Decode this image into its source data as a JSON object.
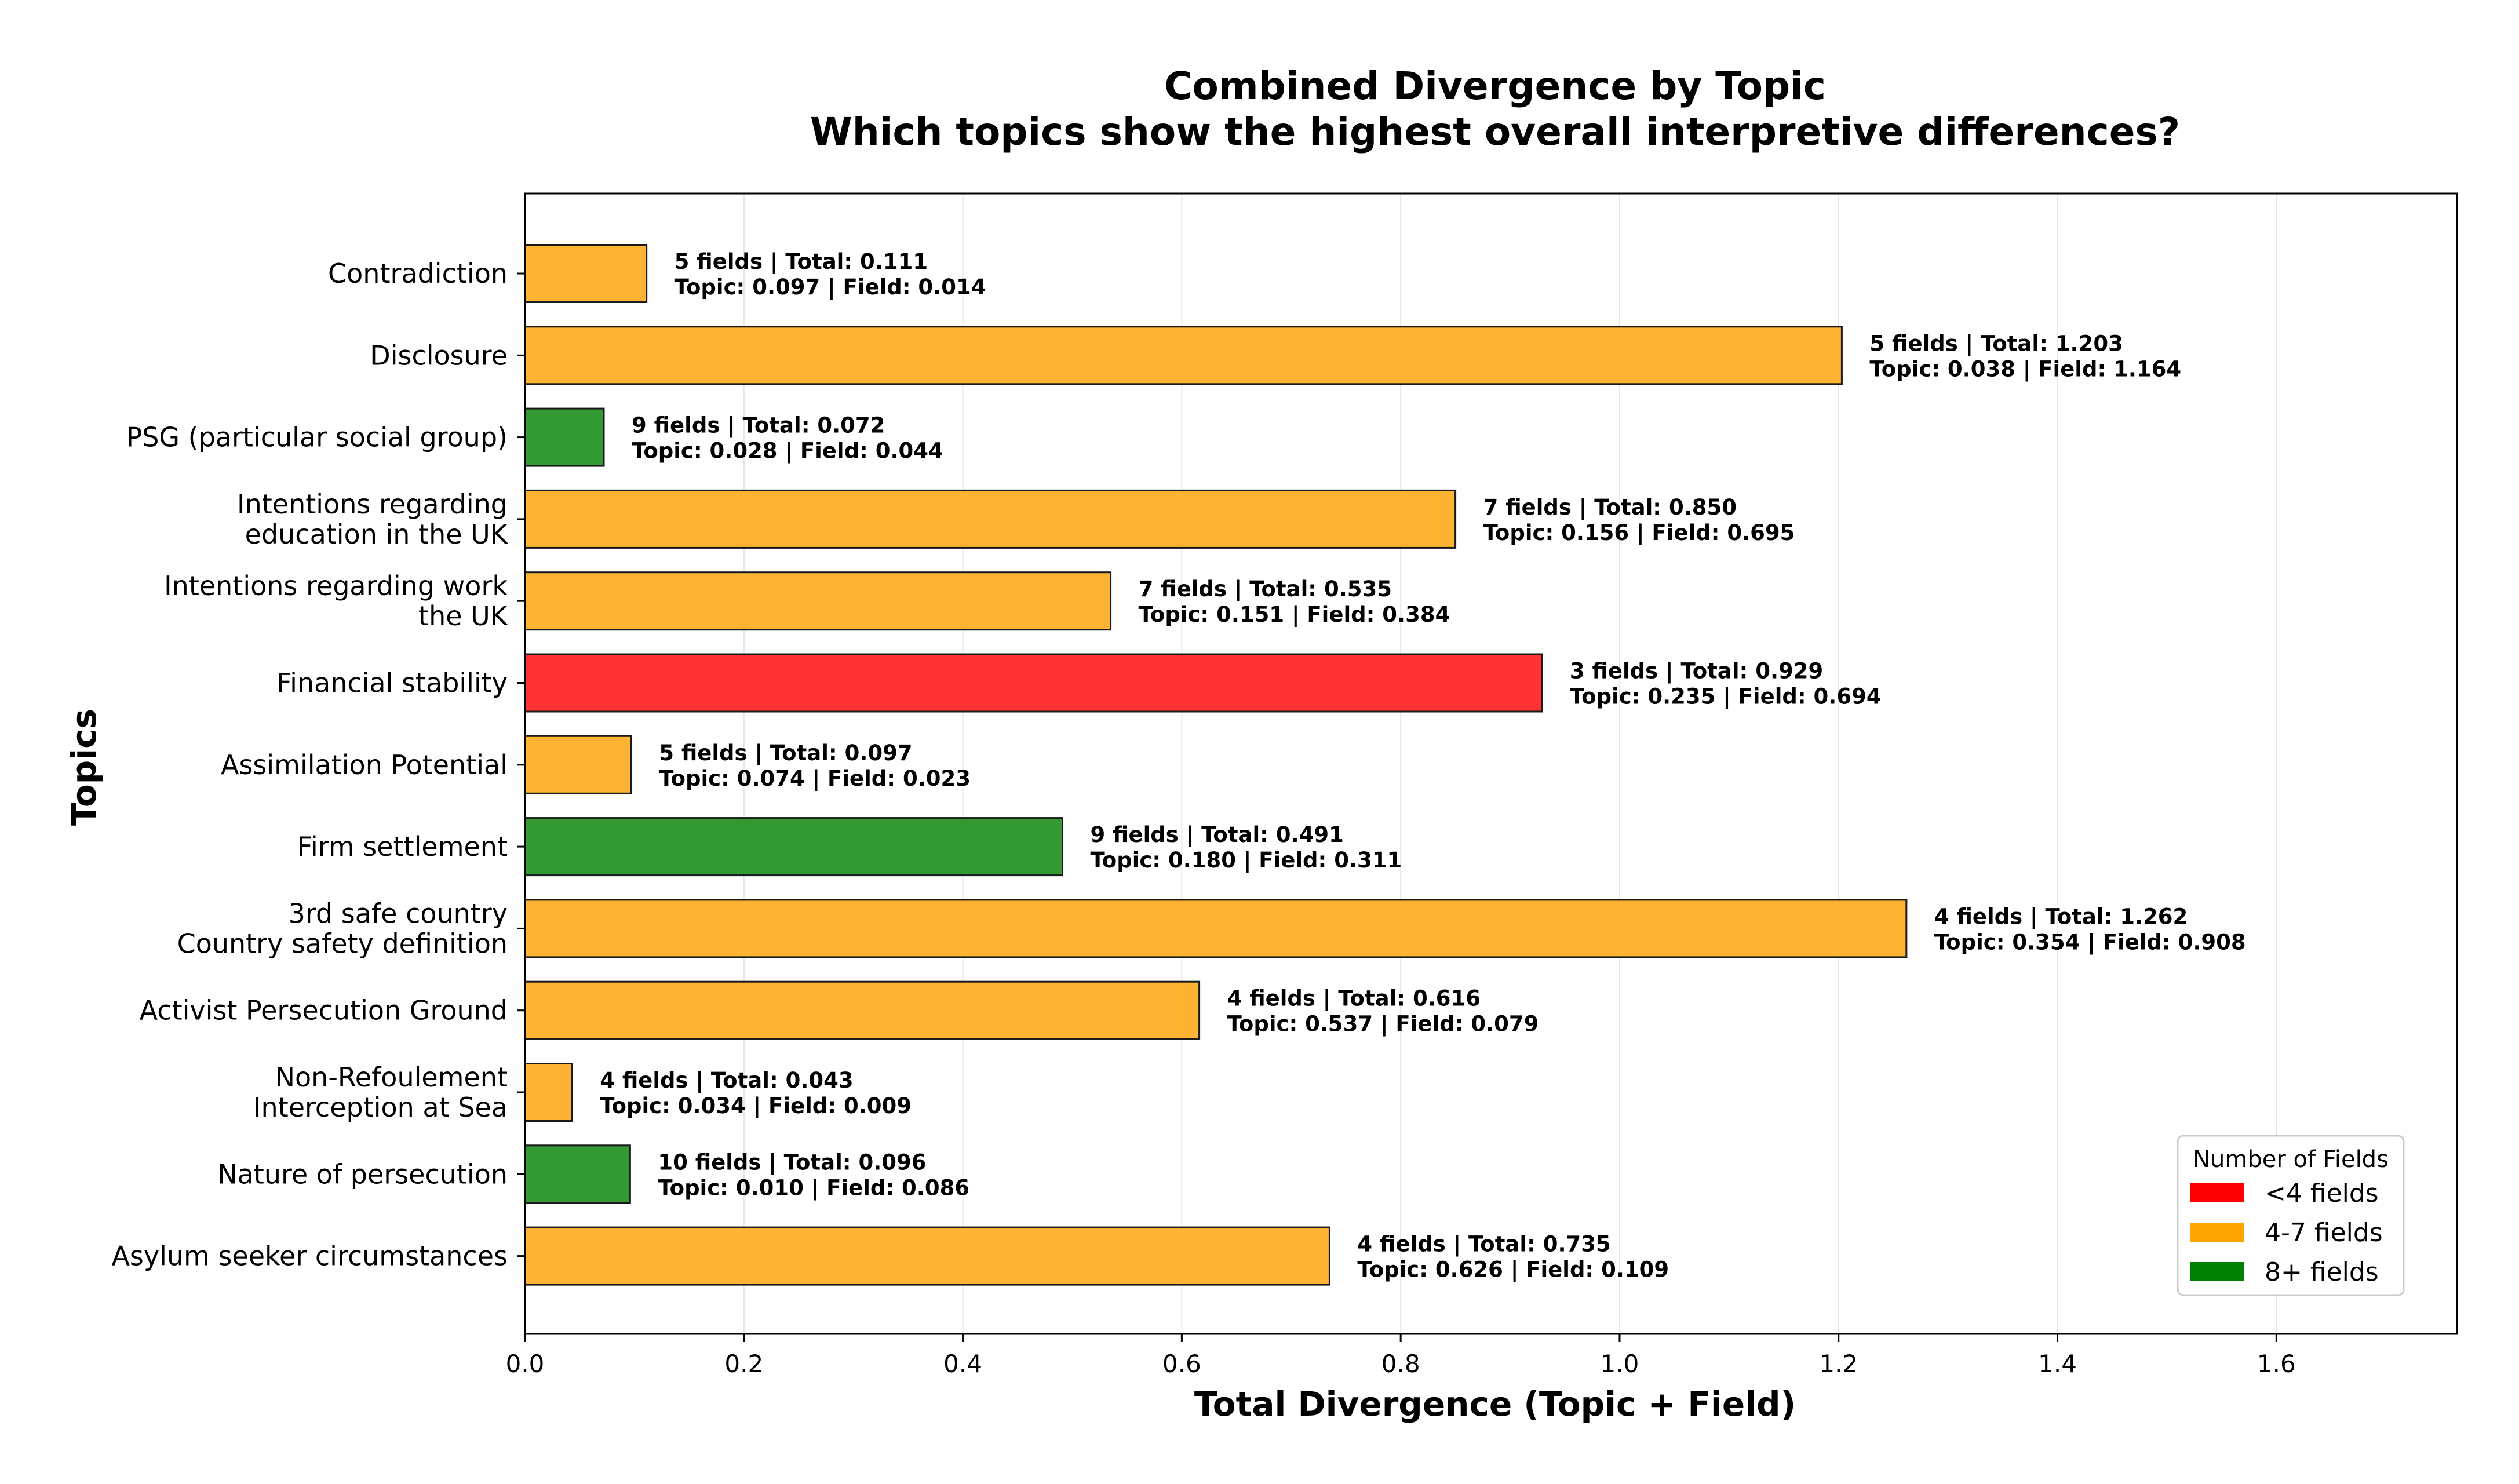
{
  "chart_data": {
    "type": "bar",
    "orientation": "horizontal",
    "title_lines": [
      "Combined Divergence by Topic",
      "Which topics show the highest overall interpretive differences?"
    ],
    "xlabel": "Total Divergence (Topic + Field)",
    "ylabel": "Topics",
    "xlim": [
      0,
      1.765
    ],
    "xticks": [
      "0.0",
      "0.2",
      "0.4",
      "0.6",
      "0.8",
      "1.0",
      "1.2",
      "1.4",
      "1.6"
    ],
    "xtick_values": [
      0.0,
      0.2,
      0.4,
      0.6,
      0.8,
      1.0,
      1.2,
      1.4,
      1.6
    ],
    "grid": "x",
    "legend": {
      "title": "Number of Fields",
      "placement": "lower-right",
      "entries": [
        {
          "label": "<4 fields",
          "color": "#ff0000"
        },
        {
          "label": "4-7 fields",
          "color": "#ffa500"
        },
        {
          "label": "8+ fields",
          "color": "#008000"
        }
      ]
    },
    "bar_colors": {
      "<4 fields": "#ff3333",
      "4-7 fields": "#ffb333",
      "8+ fields": "#339933"
    },
    "categories": [
      {
        "lines": [
          "Contradiction"
        ],
        "total": 0.111,
        "topic": 0.097,
        "field": 0.014,
        "fields": 5,
        "group": "4-7 fields",
        "label_line1": "5 fields | Total: 0.111",
        "label_line2": "Topic: 0.097 | Field: 0.014"
      },
      {
        "lines": [
          "Disclosure"
        ],
        "total": 1.203,
        "topic": 0.038,
        "field": 1.164,
        "fields": 5,
        "group": "4-7 fields",
        "label_line1": "5 fields | Total: 1.203",
        "label_line2": "Topic: 0.038 | Field: 1.164"
      },
      {
        "lines": [
          "PSG (particular social group)"
        ],
        "total": 0.072,
        "topic": 0.028,
        "field": 0.044,
        "fields": 9,
        "group": "8+ fields",
        "label_line1": "9 fields | Total: 0.072",
        "label_line2": "Topic: 0.028 | Field: 0.044"
      },
      {
        "lines": [
          "Intentions regarding",
          "education in the UK"
        ],
        "total": 0.85,
        "topic": 0.156,
        "field": 0.695,
        "fields": 7,
        "group": "4-7 fields",
        "label_line1": "7 fields | Total: 0.850",
        "label_line2": "Topic: 0.156 | Field: 0.695"
      },
      {
        "lines": [
          "Intentions regarding work",
          "the UK"
        ],
        "total": 0.535,
        "topic": 0.151,
        "field": 0.384,
        "fields": 7,
        "group": "4-7 fields",
        "label_line1": "7 fields | Total: 0.535",
        "label_line2": "Topic: 0.151 | Field: 0.384"
      },
      {
        "lines": [
          "Financial stability"
        ],
        "total": 0.929,
        "topic": 0.235,
        "field": 0.694,
        "fields": 3,
        "group": "<4 fields",
        "label_line1": "3 fields | Total: 0.929",
        "label_line2": "Topic: 0.235 | Field: 0.694"
      },
      {
        "lines": [
          "Assimilation Potential"
        ],
        "total": 0.097,
        "topic": 0.074,
        "field": 0.023,
        "fields": 5,
        "group": "4-7 fields",
        "label_line1": "5 fields | Total: 0.097",
        "label_line2": "Topic: 0.074 | Field: 0.023"
      },
      {
        "lines": [
          "Firm settlement"
        ],
        "total": 0.491,
        "topic": 0.18,
        "field": 0.311,
        "fields": 9,
        "group": "8+ fields",
        "label_line1": "9 fields | Total: 0.491",
        "label_line2": "Topic: 0.180 | Field: 0.311"
      },
      {
        "lines": [
          "3rd safe country",
          "Country safety definition"
        ],
        "total": 1.262,
        "topic": 0.354,
        "field": 0.908,
        "fields": 4,
        "group": "4-7 fields",
        "label_line1": "4 fields | Total: 1.262",
        "label_line2": "Topic: 0.354 | Field: 0.908"
      },
      {
        "lines": [
          "Activist Persecution Ground"
        ],
        "total": 0.616,
        "topic": 0.537,
        "field": 0.079,
        "fields": 4,
        "group": "4-7 fields",
        "label_line1": "4 fields | Total: 0.616",
        "label_line2": "Topic: 0.537 | Field: 0.079"
      },
      {
        "lines": [
          "Non-Refoulement",
          "Interception at Sea"
        ],
        "total": 0.043,
        "topic": 0.034,
        "field": 0.009,
        "fields": 4,
        "group": "4-7 fields",
        "label_line1": "4 fields | Total: 0.043",
        "label_line2": "Topic: 0.034 | Field: 0.009"
      },
      {
        "lines": [
          "Nature of persecution"
        ],
        "total": 0.096,
        "topic": 0.01,
        "field": 0.086,
        "fields": 10,
        "group": "8+ fields",
        "label_line1": "10 fields | Total: 0.096",
        "label_line2": "Topic: 0.010 | Field: 0.086"
      },
      {
        "lines": [
          "Asylum seeker circumstances"
        ],
        "total": 0.735,
        "topic": 0.626,
        "field": 0.109,
        "fields": 4,
        "group": "4-7 fields",
        "label_line1": "4 fields | Total: 0.735",
        "label_line2": "Topic: 0.626 | Field: 0.109"
      }
    ]
  }
}
